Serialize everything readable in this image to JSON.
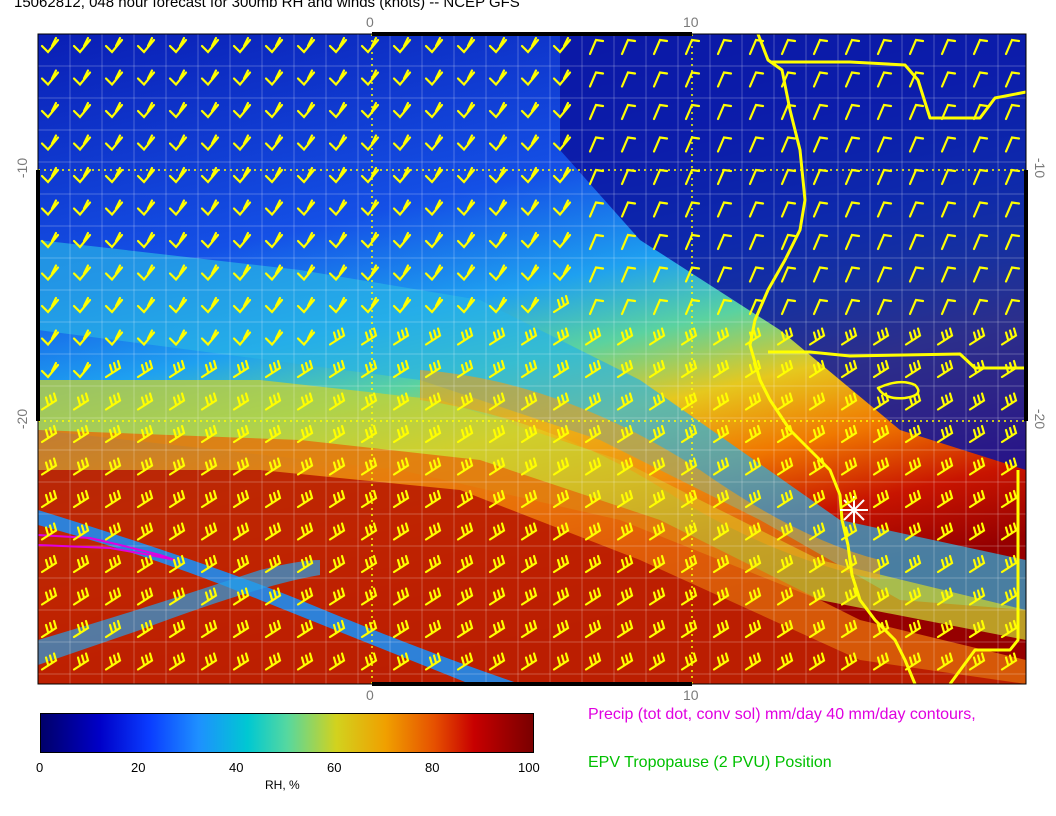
{
  "title": "15062812, 048 hour forecast for 300mb RH and winds (knots) -- NCEP GFS",
  "axes": {
    "top_ticks": [
      "0",
      "10"
    ],
    "bottom_ticks": [
      "0",
      "10"
    ],
    "left_ticks": [
      "-10",
      "-20"
    ],
    "right_ticks": [
      "-10",
      "-20"
    ]
  },
  "colorbar": {
    "ticks": [
      "0",
      "20",
      "40",
      "60",
      "80",
      "100"
    ],
    "title": "RH, %"
  },
  "legend": {
    "precip": "Precip (tot dot, conv sol) mm/day 40 mm/day contours,",
    "epv": "EPV Tropopause (2 PVU) Position"
  },
  "colors": {
    "wind_barbs": "#ffff00",
    "coastline": "#ffff00",
    "precip_contour": "#e000e0",
    "epv_text": "#00c000",
    "grid": "#ffffff",
    "station_marker": "#ffffff"
  },
  "icons": {
    "station_marker": "asterisk-icon"
  }
}
